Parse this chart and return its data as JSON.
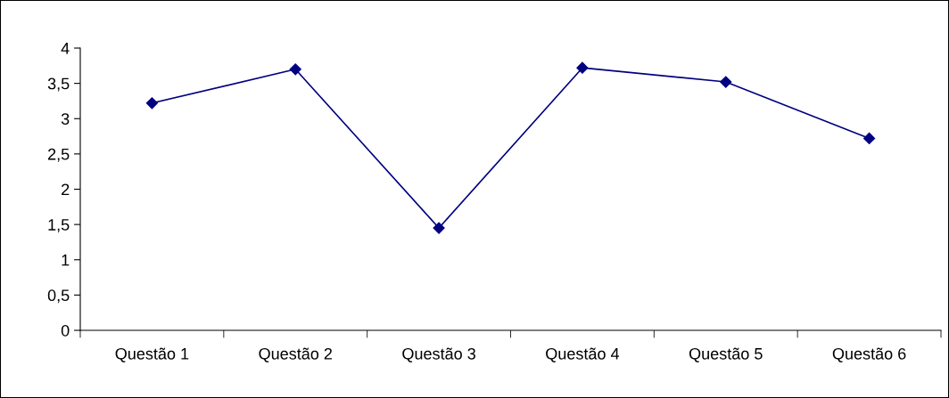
{
  "chart_data": {
    "type": "line",
    "categories": [
      "Questão 1",
      "Questão 2",
      "Questão 3",
      "Questão 4",
      "Questão 5",
      "Questão 6"
    ],
    "series": [
      {
        "color": "#000080",
        "values": [
          3.22,
          3.7,
          1.45,
          3.72,
          3.52,
          2.72
        ]
      }
    ],
    "ylim": [
      0,
      4
    ],
    "yticks": [
      0,
      {
        "value": 0.5,
        "label": "0,5"
      },
      1,
      {
        "value": 1.5,
        "label": "1,5"
      },
      2,
      {
        "value": 2.5,
        "label": "2,5"
      },
      3,
      {
        "value": 3.5,
        "label": "3,5"
      },
      4
    ],
    "grid": false,
    "legend": false,
    "marker": "diamond",
    "line_style": "solid"
  }
}
